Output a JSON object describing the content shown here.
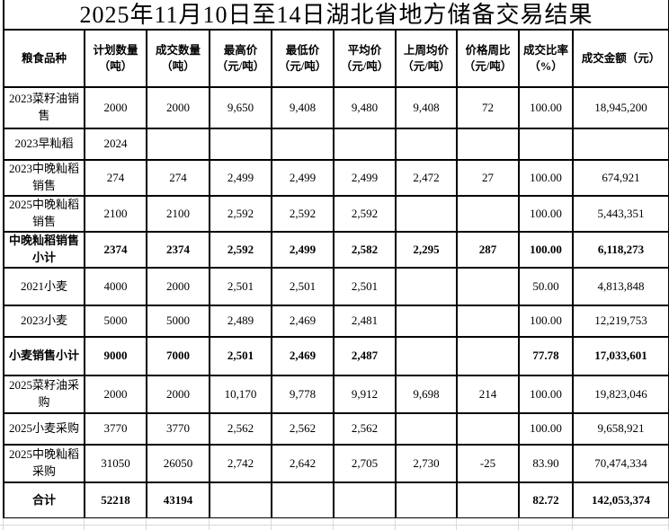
{
  "title": "2025年11月10日至14日湖北省地方储备交易结果",
  "colors": {
    "border": "#000000",
    "background": "#ffffff",
    "text": "#000000",
    "spreadsheet_gridline": "#d9d9d9"
  },
  "table": {
    "columns": [
      "粮食品种",
      "计划数量\n（吨）",
      "成交数量\n（吨）",
      "最高价\n（元/吨）",
      "最低价\n（元/吨）",
      "平均价\n（元/吨）",
      "上周均价\n（元/吨）",
      "价格周比\n（元/吨）",
      "成交比率\n（%）",
      "成交金额（元）"
    ],
    "rows": [
      {
        "bold": false,
        "cells": [
          "2023菜籽油销售",
          "2000",
          "2000",
          "9,650",
          "9,408",
          "9,480",
          "9,408",
          "72",
          "100.00",
          "18,945,200"
        ]
      },
      {
        "bold": false,
        "cells": [
          "2023早籼稻",
          "2024",
          "",
          "",
          "",
          "",
          "",
          "",
          "",
          ""
        ]
      },
      {
        "bold": false,
        "cells": [
          "2023中晚籼稻销售",
          "274",
          "274",
          "2,499",
          "2,499",
          "2,499",
          "2,472",
          "27",
          "100.00",
          "674,921"
        ]
      },
      {
        "bold": false,
        "cells": [
          "2025中晚籼稻销售",
          "2100",
          "2100",
          "2,592",
          "2,592",
          "2,592",
          "",
          "",
          "100.00",
          "5,443,351"
        ]
      },
      {
        "bold": true,
        "cells": [
          "中晚籼稻销售小计",
          "2374",
          "2374",
          "2,592",
          "2,499",
          "2,582",
          "2,295",
          "287",
          "100.00",
          "6,118,273"
        ]
      },
      {
        "bold": false,
        "cells": [
          "2021小麦",
          "4000",
          "2000",
          "2,501",
          "2,501",
          "2,501",
          "",
          "",
          "50.00",
          "4,813,848"
        ]
      },
      {
        "bold": false,
        "cells": [
          "2023小麦",
          "5000",
          "5000",
          "2,489",
          "2,469",
          "2,481",
          "",
          "",
          "100.00",
          "12,219,753"
        ]
      },
      {
        "bold": true,
        "cells": [
          "小麦销售小计",
          "9000",
          "7000",
          "2,501",
          "2,469",
          "2,487",
          "",
          "",
          "77.78",
          "17,033,601"
        ]
      },
      {
        "bold": false,
        "cells": [
          "2025菜籽油采购",
          "2000",
          "2000",
          "10,170",
          "9,778",
          "9,912",
          "9,698",
          "214",
          "100.00",
          "19,823,046"
        ]
      },
      {
        "bold": false,
        "cells": [
          "2025小麦采购",
          "3770",
          "3770",
          "2,562",
          "2,562",
          "2,562",
          "",
          "",
          "100.00",
          "9,658,921"
        ]
      },
      {
        "bold": false,
        "cells": [
          "2025中晚籼稻采购",
          "31050",
          "26050",
          "2,742",
          "2,642",
          "2,705",
          "2,730",
          "-25",
          "83.90",
          "70,474,334"
        ]
      },
      {
        "bold": true,
        "cells": [
          "合计",
          "52218",
          "43194",
          "",
          "",
          "",
          "",
          "",
          "82.72",
          "142,053,374"
        ]
      }
    ]
  }
}
